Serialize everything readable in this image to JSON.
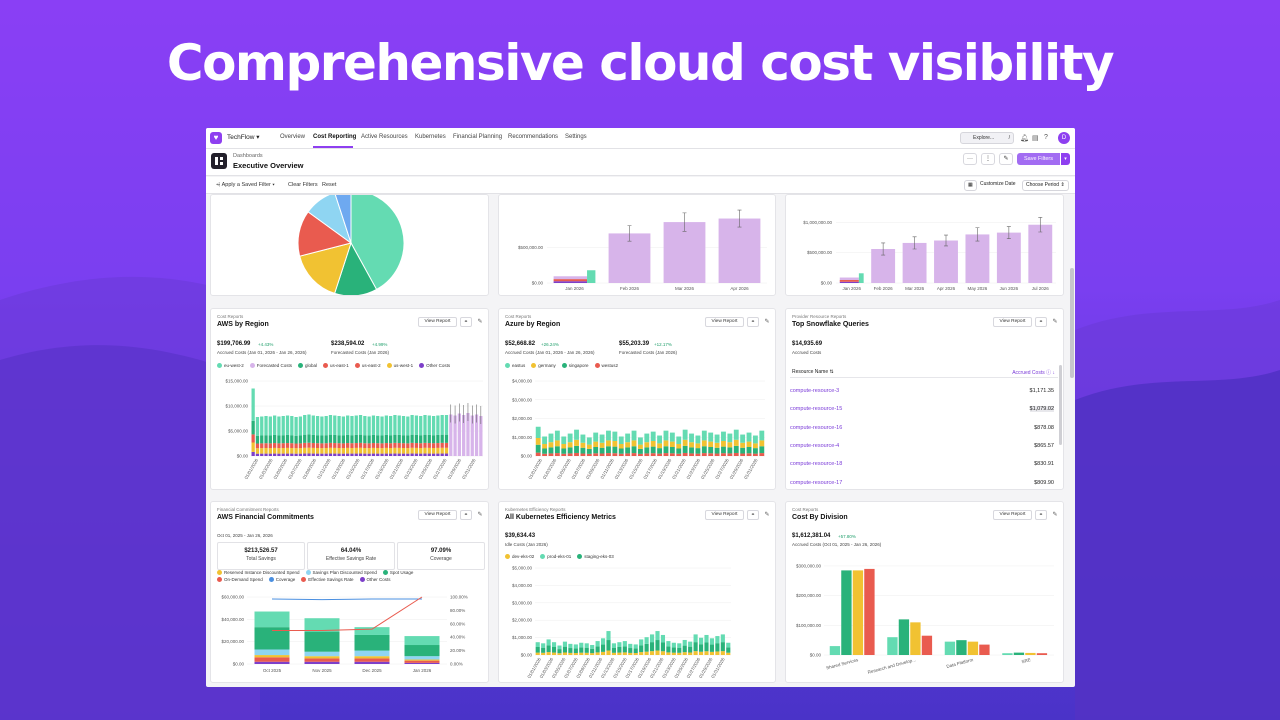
{
  "headline": "Comprehensive cloud cost visibility",
  "colors": {
    "brand": "#8e3ff0",
    "teal": "#64dbb2",
    "green": "#29b27a",
    "yellow": "#f1c232",
    "red": "#e95b4f",
    "purple": "#7d3fc9",
    "lavender": "#d7b4ea",
    "blue": "#8fd5f2"
  },
  "topbar": {
    "org": "TechFlow",
    "nav": [
      "Overview",
      "Cost Reporting",
      "Active Resources",
      "Kubernetes",
      "Financial Planning",
      "Recommendations",
      "Settings"
    ],
    "active_nav": "Cost Reporting",
    "explore": "Explore...",
    "shortcut": "/",
    "avatar": "D"
  },
  "dashboard": {
    "crumb": "Dashboards",
    "title": "Executive Overview",
    "save_filters": "Save Filters"
  },
  "filterbar": {
    "saved_filter": "Apply a Saved Filter",
    "clear": "Clear Filters",
    "reset": "Reset",
    "customize": "Customize Date",
    "period": "Choose Period"
  },
  "common": {
    "view_report": "View Report"
  },
  "top_charts": {
    "pie": {
      "type": "pie",
      "values": [
        42,
        13,
        16,
        14,
        10,
        5
      ],
      "colors": [
        "#64dbb2",
        "#29b27a",
        "#f1c232",
        "#e95b4f",
        "#8fd5f2",
        "#6ea9f0"
      ]
    },
    "mid": {
      "type": "bar",
      "categories": [
        "Jan 2026",
        "Feb 2026",
        "Mar 2026",
        "Apr 2026"
      ],
      "ticks": [
        "$0.00",
        "$500,000.00"
      ],
      "ymax": 1200000,
      "stack_jan": [
        25000,
        30000,
        40000,
        180000
      ],
      "values": [
        0,
        700000,
        860000,
        910000
      ],
      "errors": [
        0,
        110000,
        130000,
        120000
      ]
    },
    "right": {
      "type": "bar",
      "categories": [
        "Jan 2026",
        "Feb 2026",
        "Mar 2026",
        "Apr 2026",
        "May 2026",
        "Jun 2026",
        "Jul 2026"
      ],
      "ticks": [
        "$0.00",
        "$500,000.00",
        "$1,000,000.00"
      ],
      "ymax": 1400000,
      "stack_jan": [
        20000,
        30000,
        40000,
        160000
      ],
      "values": [
        0,
        560000,
        660000,
        700000,
        800000,
        830000,
        960000
      ],
      "errors": [
        0,
        100000,
        100000,
        90000,
        110000,
        100000,
        120000
      ]
    }
  },
  "aws_region": {
    "category": "Cost Reports",
    "title": "AWS by Region",
    "stat1": {
      "value": "$199,706.99",
      "delta": "+4.43%",
      "label": "Accrued Costs (Jan 01, 2026 - Jan 26, 2026)"
    },
    "stat2": {
      "value": "$238,594.02",
      "delta": "+4.99%",
      "label": "Forecasted Costs (Jan 2026)"
    },
    "legend": [
      {
        "name": "eu-west-2",
        "color": "#64dbb2"
      },
      {
        "name": "Forecasted Costs",
        "color": "#d7b4ea"
      },
      {
        "name": "global",
        "color": "#29b27a"
      },
      {
        "name": "us-east-1",
        "color": "#e95b4f"
      },
      {
        "name": "us-east-2",
        "color": "#e95b4f"
      },
      {
        "name": "us-west-1",
        "color": "#f1c232"
      },
      {
        "name": "Other Costs",
        "color": "#7d3fc9"
      }
    ],
    "chart_data": {
      "type": "bar",
      "ticks": [
        "$0.00",
        "$5,000.00",
        "$10,000.00",
        "$15,000.00"
      ],
      "ymax": 15000,
      "x_labels": [
        "01/01/2026",
        "01/03/2026",
        "01/05/2026",
        "01/07/2026",
        "01/09/2026",
        "01/11/2026",
        "01/13/2026",
        "01/15/2026",
        "01/17/2026",
        "01/19/2026",
        "01/21/2026",
        "01/23/2026",
        "01/25/2026",
        "01/27/2026",
        "01/29/2026",
        "01/31/2026"
      ],
      "totals": [
        13500,
        7800,
        7900,
        8000,
        7900,
        8100,
        7900,
        8000,
        8100,
        8000,
        7800,
        7900,
        8200,
        8300,
        8100,
        8000,
        7900,
        8000,
        8200,
        8100,
        8000,
        7900,
        8100,
        8000,
        8100,
        8200,
        8000,
        7900,
        8100,
        8000,
        7900,
        8100,
        8000,
        8200,
        8100,
        8000,
        7900,
        8200,
        8100,
        8000,
        8200,
        8100,
        8000,
        8100,
        8200,
        8200
      ],
      "forecast_from": 38,
      "forecast_values": [
        8300,
        8100,
        8500,
        8200,
        8600,
        8100,
        8300,
        8000
      ],
      "colors": [
        "#7d3fc9",
        "#f1c232",
        "#e95b4f",
        "#29b27a",
        "#64dbb2"
      ]
    }
  },
  "azure_region": {
    "category": "Cost Reports",
    "title": "Azure by Region",
    "stat1": {
      "value": "$52,668.82",
      "delta": "+26.24%",
      "label": "Accrued Costs (Jan 01, 2026 - Jan 26, 2026)"
    },
    "stat2": {
      "value": "$55,203.39",
      "delta": "+12.17%",
      "label": "Forecasted Costs (Jan 2026)"
    },
    "legend": [
      {
        "name": "eastus",
        "color": "#64dbb2"
      },
      {
        "name": "germany",
        "color": "#f1c232"
      },
      {
        "name": "singapore",
        "color": "#29b27a"
      },
      {
        "name": "westus2",
        "color": "#e95b4f"
      }
    ],
    "chart_data": {
      "type": "bar",
      "ticks": [
        "$0.00",
        "$1,000.00",
        "$2,000.00",
        "$3,000.00",
        "$4,000.00"
      ],
      "ymax": 4000,
      "x_labels": [
        "01/01/2026",
        "01/03/2026",
        "01/05/2026",
        "01/07/2026",
        "01/09/2026",
        "01/11/2026",
        "01/13/2026",
        "01/15/2026",
        "01/17/2026",
        "01/19/2026",
        "01/21/2026",
        "01/23/2026",
        "01/25/2026",
        "01/27/2026",
        "01/29/2026",
        "01/31/2026"
      ],
      "totals": [
        3000,
        2000,
        2300,
        2600,
        2000,
        2300,
        2700,
        2200,
        1900,
        2400,
        2200,
        2600,
        2500,
        2000,
        2300,
        2600,
        1900,
        2300,
        2500,
        2100,
        2600,
        2400,
        2000,
        2700,
        2300,
        2100,
        2600,
        2400,
        2200,
        2500,
        2300,
        2700,
        2200,
        2400,
        2100,
        2600
      ],
      "colors": [
        "#e95b4f",
        "#29b27a",
        "#f1c232",
        "#64dbb2"
      ]
    }
  },
  "snowflake": {
    "category": "Provider Resource Reports",
    "title": "Top Snowflake Queries",
    "stat": {
      "value": "$14,935.69",
      "label": "Accrued Costs"
    },
    "col_name": "Resource Name",
    "col_cost": "Accrued Costs",
    "rows": [
      {
        "name": "compute-resource-3",
        "cost": "$1,171.35"
      },
      {
        "name": "compute-resource-15",
        "cost": "$1,079.02"
      },
      {
        "name": "compute-resource-16",
        "cost": "$878.08"
      },
      {
        "name": "compute-resource-4",
        "cost": "$865.57"
      },
      {
        "name": "compute-resource-18",
        "cost": "$830.91"
      },
      {
        "name": "compute-resource-17",
        "cost": "$809.90"
      }
    ]
  },
  "aws_fin": {
    "category": "Financial Commitment Reports",
    "title": "AWS Financial Commitments",
    "range": "Oct 01, 2025 - Jan 26, 2026",
    "kpis": [
      {
        "value": "$213,526.57",
        "label": "Total Savings"
      },
      {
        "value": "64.04%",
        "label": "Effective Savings Rate"
      },
      {
        "value": "97.09%",
        "label": "Coverage"
      }
    ],
    "legend": [
      {
        "name": "Reserved Instance Discounted Spend",
        "color": "#f1c232"
      },
      {
        "name": "Savings Plan Discounted Spend",
        "color": "#8fd5f2"
      },
      {
        "name": "Spot Usage",
        "color": "#29b27a"
      },
      {
        "name": "On-Demand Spend",
        "color": "#e95b4f"
      },
      {
        "name": "Coverage",
        "color": "#4a8fe0"
      },
      {
        "name": "Effective Savings Rate",
        "color": "#e95b4f"
      },
      {
        "name": "Other Costs",
        "color": "#7d3fc9"
      }
    ],
    "chart_data": {
      "type": "bar",
      "categories": [
        "Oct 2025",
        "Nov 2025",
        "Dec 2025",
        "Jan 2026"
      ],
      "ticks_left": [
        "$0.00",
        "$20,000.00",
        "$40,000.00",
        "$60,000.00"
      ],
      "ticks_right": [
        "0.00%",
        "20.00%",
        "40.00%",
        "60.00%",
        "80.00%",
        "100.00%"
      ],
      "ymax": 60000,
      "stacks": [
        [
          2000,
          4000,
          2000,
          5000,
          20000,
          14000
        ],
        [
          2000,
          3000,
          2000,
          4000,
          18000,
          12000
        ],
        [
          2000,
          3000,
          2000,
          5000,
          14000,
          7000
        ],
        [
          1000,
          2000,
          1000,
          3000,
          10000,
          8000
        ]
      ],
      "coverage": [
        97,
        96,
        97,
        97
      ],
      "esr": [
        50,
        50,
        52,
        100
      ],
      "colors": [
        "#7d3fc9",
        "#e95b4f",
        "#f1c232",
        "#8fd5f2",
        "#29b27a",
        "#64dbb2"
      ]
    }
  },
  "k8s": {
    "category": "Kubernetes Efficiency Reports",
    "title": "All Kubernetes Efficiency Metrics",
    "stat": {
      "value": "$39,634.43",
      "label": "Idle Costs (Jan 2026)"
    },
    "legend": [
      {
        "name": "dev-eks-02",
        "color": "#f1c232"
      },
      {
        "name": "prod-eks-01",
        "color": "#64dbb2"
      },
      {
        "name": "staging-eks-03",
        "color": "#29b27a"
      }
    ],
    "chart_data": {
      "type": "bar",
      "ticks": [
        "$0.00",
        "$1,000.00",
        "$2,000.00",
        "$3,000.00",
        "$4,000.00",
        "$5,000.00"
      ],
      "ymax": 5000,
      "x_labels": [
        "01/01/2026",
        "01/03/2026",
        "01/05/2026",
        "01/07/2026",
        "01/09/2026",
        "01/11/2026",
        "01/13/2026",
        "01/15/2026",
        "01/17/2026",
        "01/19/2026",
        "01/21/2026",
        "01/23/2026",
        "01/25/2026",
        "01/27/2026",
        "01/29/2026",
        "01/31/2026"
      ],
      "totals": [
        2300,
        2100,
        2800,
        2300,
        1700,
        2400,
        2000,
        1900,
        2200,
        2100,
        1800,
        2500,
        3000,
        4300,
        2100,
        2300,
        2500,
        2000,
        1900,
        2800,
        3200,
        3700,
        4300,
        3600,
        2500,
        2200,
        2100,
        2700,
        2400,
        3700,
        3100,
        3600,
        3000,
        3400,
        3700,
        2200
      ],
      "colors": [
        "#f1c232",
        "#29b27a",
        "#64dbb2"
      ]
    }
  },
  "division": {
    "category": "Cost Reports",
    "title": "Cost By Division",
    "stat": {
      "value": "$1,612,381.04",
      "delta": "+57.80%",
      "label": "Accrued Costs (Oct 01, 2025 - Jan 26, 2026)"
    },
    "chart_data": {
      "type": "bar",
      "categories": [
        "Shared Services",
        "Research and Develop...",
        "Data Platform",
        "SRE"
      ],
      "ticks": [
        "$0.00",
        "$100,000.00",
        "$200,000.00",
        "$300,000.00"
      ],
      "ymax": 320000,
      "values": [
        [
          30000,
          285000,
          285000,
          290000
        ],
        [
          60000,
          120000,
          110000,
          65000
        ],
        [
          45000,
          50000,
          45000,
          35000
        ],
        [
          6000,
          8000,
          7000,
          6000
        ]
      ],
      "colors": [
        "#64dbb2",
        "#29b27a",
        "#f1c232",
        "#e95b4f"
      ]
    }
  }
}
